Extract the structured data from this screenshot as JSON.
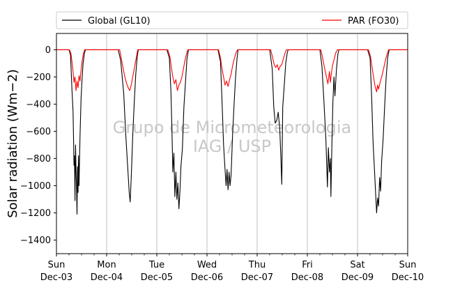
{
  "chart_data": {
    "type": "line",
    "ylabel": "Solar radiation (Wm−2)",
    "ylim": [
      -1500,
      120
    ],
    "yticks": [
      0,
      -200,
      -400,
      -600,
      -800,
      -1000,
      -1200,
      -1400
    ],
    "xlim": [
      0,
      7
    ],
    "xticks": [
      {
        "x": 0,
        "day": "Sun",
        "date": "Dec-03"
      },
      {
        "x": 1,
        "day": "Mon",
        "date": "Dec-04"
      },
      {
        "x": 2,
        "day": "Tue",
        "date": "Dec-05"
      },
      {
        "x": 3,
        "day": "Wed",
        "date": "Dec-06"
      },
      {
        "x": 4,
        "day": "Thu",
        "date": "Dec-07"
      },
      {
        "x": 5,
        "day": "Fri",
        "date": "Dec-08"
      },
      {
        "x": 6,
        "day": "Sat",
        "date": "Dec-09"
      },
      {
        "x": 7,
        "day": "Sun",
        "date": "Dec-10"
      }
    ],
    "grid": "vertical",
    "legend_position": "top",
    "watermark": [
      "Grupo de Micrometeorologia",
      "IAG / USP"
    ],
    "series": [
      {
        "name": "Global (GL10)",
        "color": "#000000",
        "points": [
          [
            0.0,
            0
          ],
          [
            0.25,
            0
          ],
          [
            0.28,
            -40
          ],
          [
            0.31,
            -300
          ],
          [
            0.33,
            -450
          ],
          [
            0.35,
            -850
          ],
          [
            0.36,
            -780
          ],
          [
            0.37,
            -1110
          ],
          [
            0.38,
            -700
          ],
          [
            0.39,
            -890
          ],
          [
            0.4,
            -1000
          ],
          [
            0.41,
            -1210
          ],
          [
            0.42,
            -860
          ],
          [
            0.43,
            -1050
          ],
          [
            0.44,
            -780
          ],
          [
            0.45,
            -1000
          ],
          [
            0.47,
            -640
          ],
          [
            0.49,
            -360
          ],
          [
            0.51,
            -220
          ],
          [
            0.53,
            -100
          ],
          [
            0.56,
            -20
          ],
          [
            0.58,
            0
          ],
          [
            1.0,
            0
          ],
          [
            1.23,
            0
          ],
          [
            1.28,
            -80
          ],
          [
            1.34,
            -320
          ],
          [
            1.38,
            -620
          ],
          [
            1.42,
            -860
          ],
          [
            1.45,
            -1050
          ],
          [
            1.47,
            -1120
          ],
          [
            1.49,
            -940
          ],
          [
            1.52,
            -640
          ],
          [
            1.55,
            -390
          ],
          [
            1.58,
            -180
          ],
          [
            1.61,
            -50
          ],
          [
            1.63,
            0
          ],
          [
            2.0,
            0
          ],
          [
            2.2,
            0
          ],
          [
            2.25,
            -60
          ],
          [
            2.28,
            -300
          ],
          [
            2.3,
            -560
          ],
          [
            2.32,
            -900
          ],
          [
            2.34,
            -760
          ],
          [
            2.36,
            -1080
          ],
          [
            2.38,
            -900
          ],
          [
            2.4,
            -1100
          ],
          [
            2.42,
            -980
          ],
          [
            2.44,
            -1170
          ],
          [
            2.46,
            -1050
          ],
          [
            2.48,
            -860
          ],
          [
            2.51,
            -730
          ],
          [
            2.54,
            -420
          ],
          [
            2.57,
            -250
          ],
          [
            2.6,
            -70
          ],
          [
            2.63,
            0
          ],
          [
            3.0,
            0
          ],
          [
            3.22,
            0
          ],
          [
            3.27,
            -90
          ],
          [
            3.3,
            -380
          ],
          [
            3.33,
            -700
          ],
          [
            3.36,
            -880
          ],
          [
            3.38,
            -1000
          ],
          [
            3.4,
            -880
          ],
          [
            3.42,
            -1030
          ],
          [
            3.44,
            -900
          ],
          [
            3.46,
            -1000
          ],
          [
            3.48,
            -920
          ],
          [
            3.51,
            -630
          ],
          [
            3.54,
            -400
          ],
          [
            3.57,
            -200
          ],
          [
            3.6,
            -60
          ],
          [
            3.62,
            0
          ],
          [
            4.0,
            0
          ],
          [
            4.25,
            0
          ],
          [
            4.3,
            -140
          ],
          [
            4.33,
            -420
          ],
          [
            4.36,
            -540
          ],
          [
            4.39,
            -520
          ],
          [
            4.42,
            -460
          ],
          [
            4.45,
            -580
          ],
          [
            4.47,
            -760
          ],
          [
            4.49,
            -990
          ],
          [
            4.51,
            -420
          ],
          [
            4.54,
            -260
          ],
          [
            4.57,
            -100
          ],
          [
            4.6,
            -20
          ],
          [
            4.62,
            0
          ],
          [
            5.0,
            0
          ],
          [
            5.25,
            0
          ],
          [
            5.29,
            -120
          ],
          [
            5.33,
            -380
          ],
          [
            5.37,
            -660
          ],
          [
            5.4,
            -1010
          ],
          [
            5.42,
            -720
          ],
          [
            5.44,
            -900
          ],
          [
            5.46,
            -800
          ],
          [
            5.47,
            -1080
          ],
          [
            5.49,
            -680
          ],
          [
            5.51,
            -380
          ],
          [
            5.53,
            -200
          ],
          [
            5.55,
            -340
          ],
          [
            5.58,
            -140
          ],
          [
            5.61,
            -30
          ],
          [
            5.63,
            0
          ],
          [
            6.0,
            0
          ],
          [
            6.2,
            0
          ],
          [
            6.25,
            -60
          ],
          [
            6.28,
            -340
          ],
          [
            6.31,
            -680
          ],
          [
            6.34,
            -900
          ],
          [
            6.36,
            -1050
          ],
          [
            6.38,
            -1200
          ],
          [
            6.4,
            -1090
          ],
          [
            6.42,
            -1150
          ],
          [
            6.44,
            -940
          ],
          [
            6.46,
            -1040
          ],
          [
            6.48,
            -820
          ],
          [
            6.51,
            -660
          ],
          [
            6.54,
            -420
          ],
          [
            6.57,
            -210
          ],
          [
            6.6,
            -60
          ],
          [
            6.63,
            0
          ],
          [
            7.0,
            0
          ]
        ]
      },
      {
        "name": "PAR (FO30)",
        "color": "#ff0000",
        "points": [
          [
            0.0,
            0
          ],
          [
            0.26,
            0
          ],
          [
            0.29,
            -30
          ],
          [
            0.31,
            -90
          ],
          [
            0.33,
            -160
          ],
          [
            0.35,
            -240
          ],
          [
            0.37,
            -200
          ],
          [
            0.39,
            -300
          ],
          [
            0.41,
            -230
          ],
          [
            0.43,
            -280
          ],
          [
            0.45,
            -190
          ],
          [
            0.47,
            -230
          ],
          [
            0.49,
            -150
          ],
          [
            0.51,
            -90
          ],
          [
            0.53,
            -40
          ],
          [
            0.56,
            0
          ],
          [
            1.0,
            0
          ],
          [
            1.26,
            0
          ],
          [
            1.29,
            -60
          ],
          [
            1.33,
            -140
          ],
          [
            1.37,
            -210
          ],
          [
            1.4,
            -250
          ],
          [
            1.43,
            -280
          ],
          [
            1.46,
            -300
          ],
          [
            1.49,
            -260
          ],
          [
            1.52,
            -200
          ],
          [
            1.56,
            -120
          ],
          [
            1.59,
            -60
          ],
          [
            1.62,
            0
          ],
          [
            2.0,
            0
          ],
          [
            2.22,
            0
          ],
          [
            2.26,
            -50
          ],
          [
            2.29,
            -130
          ],
          [
            2.32,
            -200
          ],
          [
            2.35,
            -250
          ],
          [
            2.38,
            -220
          ],
          [
            2.41,
            -300
          ],
          [
            2.44,
            -260
          ],
          [
            2.47,
            -240
          ],
          [
            2.5,
            -200
          ],
          [
            2.53,
            -140
          ],
          [
            2.56,
            -80
          ],
          [
            2.6,
            -20
          ],
          [
            2.62,
            0
          ],
          [
            3.0,
            0
          ],
          [
            3.23,
            0
          ],
          [
            3.27,
            -60
          ],
          [
            3.3,
            -140
          ],
          [
            3.33,
            -200
          ],
          [
            3.36,
            -260
          ],
          [
            3.39,
            -230
          ],
          [
            3.42,
            -270
          ],
          [
            3.45,
            -220
          ],
          [
            3.48,
            -180
          ],
          [
            3.51,
            -120
          ],
          [
            3.54,
            -70
          ],
          [
            3.58,
            -20
          ],
          [
            3.61,
            0
          ],
          [
            4.0,
            0
          ],
          [
            4.27,
            0
          ],
          [
            4.31,
            -60
          ],
          [
            4.34,
            -110
          ],
          [
            4.37,
            -130
          ],
          [
            4.4,
            -110
          ],
          [
            4.43,
            -150
          ],
          [
            4.46,
            -120
          ],
          [
            4.49,
            -110
          ],
          [
            4.52,
            -70
          ],
          [
            4.55,
            -30
          ],
          [
            4.58,
            0
          ],
          [
            5.0,
            0
          ],
          [
            5.27,
            0
          ],
          [
            5.3,
            -50
          ],
          [
            5.34,
            -130
          ],
          [
            5.38,
            -200
          ],
          [
            5.41,
            -250
          ],
          [
            5.44,
            -160
          ],
          [
            5.46,
            -240
          ],
          [
            5.48,
            -170
          ],
          [
            5.5,
            -120
          ],
          [
            5.52,
            -90
          ],
          [
            5.54,
            -60
          ],
          [
            5.57,
            -20
          ],
          [
            5.6,
            0
          ],
          [
            6.0,
            0
          ],
          [
            6.22,
            0
          ],
          [
            6.26,
            -50
          ],
          [
            6.29,
            -130
          ],
          [
            6.32,
            -200
          ],
          [
            6.35,
            -270
          ],
          [
            6.38,
            -310
          ],
          [
            6.4,
            -260
          ],
          [
            6.42,
            -290
          ],
          [
            6.45,
            -240
          ],
          [
            6.48,
            -200
          ],
          [
            6.52,
            -140
          ],
          [
            6.56,
            -70
          ],
          [
            6.6,
            -20
          ],
          [
            6.62,
            0
          ],
          [
            7.0,
            0
          ]
        ]
      }
    ]
  }
}
